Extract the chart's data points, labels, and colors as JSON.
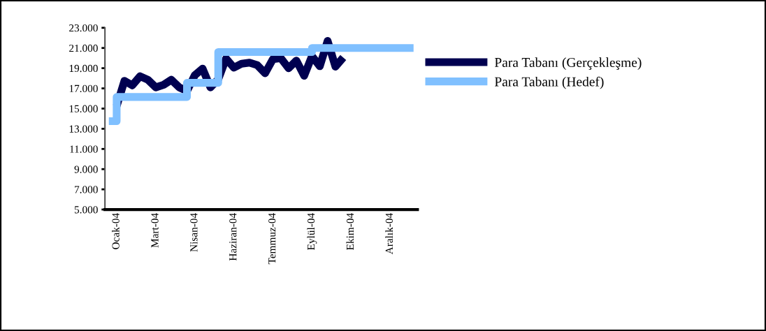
{
  "chart_data": {
    "type": "line",
    "categories": [
      null,
      "Ocak-04",
      null,
      null,
      null,
      null,
      "Mart-04",
      null,
      null,
      null,
      null,
      "Nisan-04",
      null,
      null,
      null,
      null,
      "Haziran-04",
      null,
      null,
      null,
      null,
      "Temmuz-04",
      null,
      null,
      null,
      null,
      "Eylül-04",
      null,
      null,
      null,
      null,
      "Ekim-04",
      null,
      null,
      null,
      null,
      "Aralık-04",
      null,
      null,
      null
    ],
    "ylim": [
      5000,
      23000
    ],
    "yticks": [
      {
        "value": 5000,
        "label": "5.000"
      },
      {
        "value": 7000,
        "label": "7.000"
      },
      {
        "value": 9000,
        "label": "9.000"
      },
      {
        "value": 11000,
        "label": "11.000"
      },
      {
        "value": 13000,
        "label": "13.000"
      },
      {
        "value": 15000,
        "label": "15.000"
      },
      {
        "value": 17000,
        "label": "17.000"
      },
      {
        "value": 19000,
        "label": "19.000"
      },
      {
        "value": 21000,
        "label": "21.000"
      },
      {
        "value": 23000,
        "label": "23.000"
      }
    ],
    "grid": false,
    "legend": "right",
    "marker": "none",
    "line_style": "solid",
    "series": [
      {
        "name": "Para Tabanı (Gerçekleşme)",
        "color": "#000050",
        "values": [
          null,
          15250,
          17750,
          17300,
          18200,
          17850,
          17100,
          17350,
          17850,
          17100,
          16750,
          18300,
          18950,
          17100,
          17900,
          19950,
          19050,
          19450,
          19550,
          19300,
          18500,
          19900,
          20000,
          19000,
          19750,
          18250,
          20200,
          19200,
          21700,
          19150,
          20050,
          null,
          null,
          null,
          null,
          null,
          null,
          null,
          null,
          null
        ]
      },
      {
        "name": "Para Tabanı (Hedef)",
        "color": "#80c0ff",
        "type": "step",
        "values": [
          13750,
          16150,
          16150,
          16150,
          16150,
          16150,
          16150,
          16150,
          16150,
          16150,
          17550,
          17550,
          17550,
          17550,
          20600,
          20600,
          20600,
          20600,
          20600,
          20600,
          20600,
          20600,
          20600,
          20600,
          20600,
          20600,
          21000,
          21000,
          21000,
          21000,
          21000,
          21000,
          21000,
          21000,
          21000,
          21000,
          21000,
          21000,
          21000,
          21000
        ]
      }
    ]
  }
}
